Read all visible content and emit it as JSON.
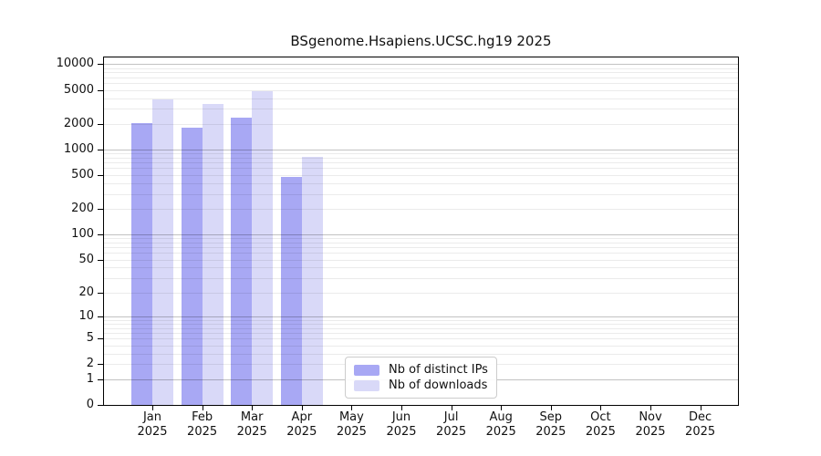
{
  "figure": {
    "title": "BSgenome.Hsapiens.UCSC.hg19 2025"
  },
  "legend": {
    "items": [
      {
        "label": "Nb of distinct IPs",
        "color": "#a8a8f4"
      },
      {
        "label": "Nb of downloads",
        "color": "#d9d9f8"
      }
    ]
  },
  "colors": {
    "bar_distinct_ips": "#a8a8f4",
    "bar_downloads": "#d9d9f8",
    "axis": "#000000",
    "grid_major": "rgba(0,0,0,0.24)",
    "grid_minor": "rgba(0,0,0,0.08)",
    "legend_border": "#cccccc",
    "text": "#111111"
  },
  "chart_data": {
    "type": "bar",
    "title": "BSgenome.Hsapiens.UCSC.hg19 2025",
    "categories": [
      "Jan 2025",
      "Feb 2025",
      "Mar 2025",
      "Apr 2025",
      "May 2025",
      "Jun 2025",
      "Jul 2025",
      "Aug 2025",
      "Sep 2025",
      "Oct 2025",
      "Nov 2025",
      "Dec 2025"
    ],
    "series": [
      {
        "name": "Nb of distinct IPs",
        "color": "#a8a8f4",
        "values": [
          2050,
          1800,
          2350,
          475,
          0,
          0,
          0,
          0,
          0,
          0,
          0,
          0
        ]
      },
      {
        "name": "Nb of downloads",
        "color": "#d9d9f8",
        "values": [
          3900,
          3450,
          4800,
          820,
          0,
          0,
          0,
          0,
          0,
          0,
          0,
          0
        ]
      }
    ],
    "xlabel": "",
    "ylabel": "",
    "yscale": "log1p",
    "ylim": [
      0,
      12000
    ],
    "y_ticks": [
      10000,
      5000,
      2000,
      1000,
      500,
      200,
      100,
      50,
      20,
      10,
      5,
      2,
      1,
      0
    ],
    "grid": "horizontal: major at powers of 10, minor at 2-9 multiples",
    "legend_position": "lower center inside plot"
  }
}
